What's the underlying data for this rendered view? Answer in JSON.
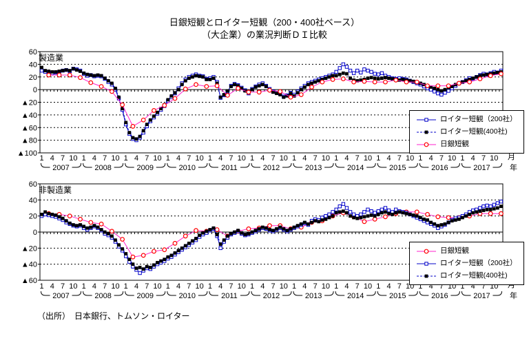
{
  "title": {
    "line1": "日銀短観とロイター短観（200・400社ベース）",
    "line2": "（大企業）の業況判断ＤＩ比較"
  },
  "source": "（出所）　日本銀行、トムソン・ロイター",
  "axis": {
    "month_unit": "月",
    "year_unit": "年",
    "neg_prefix": "▲",
    "month_ticks": [
      1,
      4,
      7,
      10
    ],
    "years": [
      "2007",
      "2008",
      "2009",
      "2010",
      "2011",
      "2012",
      "2013",
      "2014",
      "2015",
      "2016",
      "2017"
    ]
  },
  "colors": {
    "reuters_blue": "#0000c8",
    "filled_square": "#000000",
    "boj_line": "#ff22cc",
    "boj_marker": "#ff0000",
    "grid": "#000000",
    "text": "#000000"
  },
  "chart_data": [
    {
      "type": "line",
      "label": "製造業",
      "ylim": [
        -100,
        60
      ],
      "ytick_labels": [
        "60",
        "40",
        "20",
        "0",
        "▲20",
        "▲40",
        "▲60",
        "▲80",
        "▲100"
      ],
      "grid": "dashed horizontal every 20",
      "legend_position": "right-middle",
      "legend_order": [
        "r200",
        "r400",
        "boj"
      ],
      "series": [
        {
          "key": "r200",
          "name": "ロイター短観（200社）",
          "frequency": "monthly",
          "values": [
            30,
            28,
            27,
            26,
            27,
            28,
            30,
            31,
            29,
            33,
            32,
            30,
            25,
            22,
            23,
            21,
            22,
            21,
            17,
            12,
            8,
            0,
            -14,
            -32,
            -55,
            -70,
            -78,
            -80,
            -76,
            -68,
            -58,
            -50,
            -44,
            -38,
            -32,
            -26,
            -18,
            -12,
            -6,
            2,
            10,
            16,
            20,
            22,
            24,
            22,
            21,
            17,
            18,
            20,
            12,
            -13,
            -9,
            -3,
            6,
            9,
            7,
            3,
            -1,
            -6,
            1,
            5,
            8,
            10,
            6,
            1,
            -3,
            -5,
            -7,
            -11,
            -9,
            -5,
            -8,
            -3,
            2,
            6,
            10,
            12,
            14,
            16,
            18,
            20,
            22,
            24,
            28,
            34,
            40,
            36,
            30,
            26,
            30,
            27,
            32,
            30,
            28,
            25,
            24,
            26,
            22,
            20,
            18,
            17,
            18,
            17,
            16,
            14,
            12,
            10,
            8,
            5,
            2,
            0,
            -3,
            -6,
            -8,
            -5,
            -2,
            2,
            6,
            10,
            12,
            15,
            18,
            17,
            20,
            23,
            25,
            24,
            26,
            28,
            27,
            30
          ]
        },
        {
          "key": "r400",
          "name": "ロイター短観(400社)",
          "frequency": "monthly",
          "values": [
            35,
            30,
            29,
            28,
            28,
            29,
            30,
            31,
            30,
            33,
            31,
            29,
            26,
            24,
            23,
            22,
            23,
            22,
            18,
            14,
            10,
            2,
            -12,
            -30,
            -52,
            -68,
            -76,
            -78,
            -74,
            -65,
            -55,
            -48,
            -42,
            -36,
            -30,
            -24,
            -16,
            -10,
            -5,
            0,
            8,
            14,
            18,
            20,
            22,
            21,
            20,
            16,
            16,
            18,
            10,
            -12,
            -8,
            -2,
            5,
            8,
            6,
            2,
            -2,
            -5,
            0,
            4,
            6,
            8,
            5,
            0,
            -4,
            -6,
            -8,
            -12,
            -10,
            -6,
            -10,
            -5,
            0,
            4,
            8,
            10,
            12,
            14,
            16,
            18,
            20,
            22,
            22,
            24,
            26,
            25,
            18,
            15,
            14,
            15,
            16,
            18,
            19,
            18,
            17,
            18,
            19,
            18,
            17,
            16,
            15,
            16,
            15,
            14,
            13,
            12,
            10,
            8,
            6,
            4,
            2,
            0,
            -2,
            0,
            3,
            5,
            8,
            10,
            12,
            14,
            16,
            18,
            20,
            22,
            23,
            24,
            25,
            26,
            27,
            28
          ]
        },
        {
          "key": "boj",
          "name": "日銀短観",
          "frequency": "quarterly",
          "survey_months": [
            3,
            6,
            9,
            12
          ],
          "values": [
            23,
            23,
            23,
            19,
            11,
            5,
            -3,
            -24,
            -58,
            -48,
            -33,
            -25,
            -14,
            1,
            8,
            5,
            6,
            -9,
            2,
            -4,
            -4,
            -1,
            -3,
            -12,
            -8,
            4,
            12,
            16,
            17,
            12,
            13,
            12,
            12,
            15,
            12,
            12,
            6,
            6,
            6,
            10,
            12,
            17,
            22,
            25
          ]
        }
      ]
    },
    {
      "type": "line",
      "label": "非製造業",
      "ylim": [
        -60,
        60
      ],
      "ytick_labels": [
        "60",
        "40",
        "20",
        "0",
        "▲20",
        "▲40",
        "▲60"
      ],
      "grid": "dashed horizontal every 20",
      "legend_position": "right-lower",
      "legend_order": [
        "boj",
        "r200",
        "r400"
      ],
      "series": [
        {
          "key": "boj",
          "name": "日銀短観",
          "frequency": "quarterly",
          "survey_months": [
            3,
            6,
            9,
            12
          ],
          "values": [
            23,
            22,
            20,
            16,
            12,
            10,
            1,
            -9,
            -31,
            -29,
            -24,
            -22,
            -14,
            -5,
            2,
            1,
            3,
            -5,
            1,
            4,
            5,
            8,
            8,
            4,
            6,
            12,
            14,
            20,
            24,
            19,
            13,
            16,
            19,
            23,
            25,
            25,
            22,
            19,
            18,
            18,
            20,
            23,
            23,
            23
          ]
        },
        {
          "key": "r200",
          "name": "ロイター短観（200社）",
          "frequency": "monthly",
          "values": [
            20,
            22,
            21,
            20,
            19,
            17,
            15,
            12,
            10,
            8,
            7,
            8,
            5,
            3,
            5,
            7,
            5,
            2,
            -2,
            -4,
            -7,
            -12,
            -18,
            -23,
            -30,
            -37,
            -43,
            -47,
            -51,
            -48,
            -45,
            -46,
            -43,
            -40,
            -38,
            -36,
            -33,
            -31,
            -28,
            -25,
            -22,
            -19,
            -16,
            -13,
            -10,
            -6,
            -3,
            -1,
            2,
            4,
            -5,
            -20,
            -12,
            -7,
            -3,
            -1,
            1,
            -2,
            -4,
            -3,
            -1,
            1,
            3,
            5,
            4,
            2,
            1,
            3,
            5,
            3,
            1,
            3,
            5,
            7,
            9,
            11,
            9,
            14,
            16,
            15,
            18,
            20,
            22,
            25,
            28,
            32,
            35,
            30,
            25,
            22,
            20,
            22,
            25,
            28,
            26,
            24,
            26,
            28,
            30,
            27,
            25,
            28,
            26,
            25,
            24,
            22,
            20,
            18,
            16,
            14,
            12,
            10,
            8,
            5,
            7,
            9,
            12,
            15,
            17,
            18,
            20,
            22,
            25,
            27,
            28,
            30,
            32,
            33,
            32,
            34,
            36,
            38
          ]
        },
        {
          "key": "r400",
          "name": "ロイター短観(400社)",
          "frequency": "monthly",
          "values": [
            22,
            25,
            23,
            22,
            21,
            19,
            17,
            14,
            11,
            9,
            8,
            9,
            7,
            5,
            6,
            8,
            6,
            3,
            0,
            -2,
            -5,
            -10,
            -16,
            -21,
            -27,
            -34,
            -40,
            -45,
            -44,
            -46,
            -43,
            -44,
            -41,
            -38,
            -36,
            -34,
            -31,
            -29,
            -26,
            -23,
            -20,
            -17,
            -14,
            -11,
            -8,
            -4,
            -1,
            1,
            3,
            5,
            -3,
            -15,
            -10,
            -5,
            -2,
            0,
            2,
            -1,
            -3,
            -2,
            0,
            2,
            4,
            6,
            5,
            3,
            2,
            4,
            6,
            4,
            2,
            4,
            6,
            8,
            10,
            12,
            10,
            12,
            14,
            13,
            15,
            16,
            18,
            20,
            24,
            25,
            26,
            24,
            20,
            18,
            17,
            18,
            19,
            20,
            21,
            20,
            22,
            24,
            25,
            23,
            22,
            24,
            25,
            24,
            23,
            22,
            21,
            20,
            18,
            16,
            15,
            12,
            10,
            8,
            9,
            10,
            12,
            14,
            15,
            16,
            18,
            20,
            22,
            24,
            25,
            26,
            27,
            28,
            28,
            29,
            30,
            32
          ]
        }
      ]
    }
  ]
}
